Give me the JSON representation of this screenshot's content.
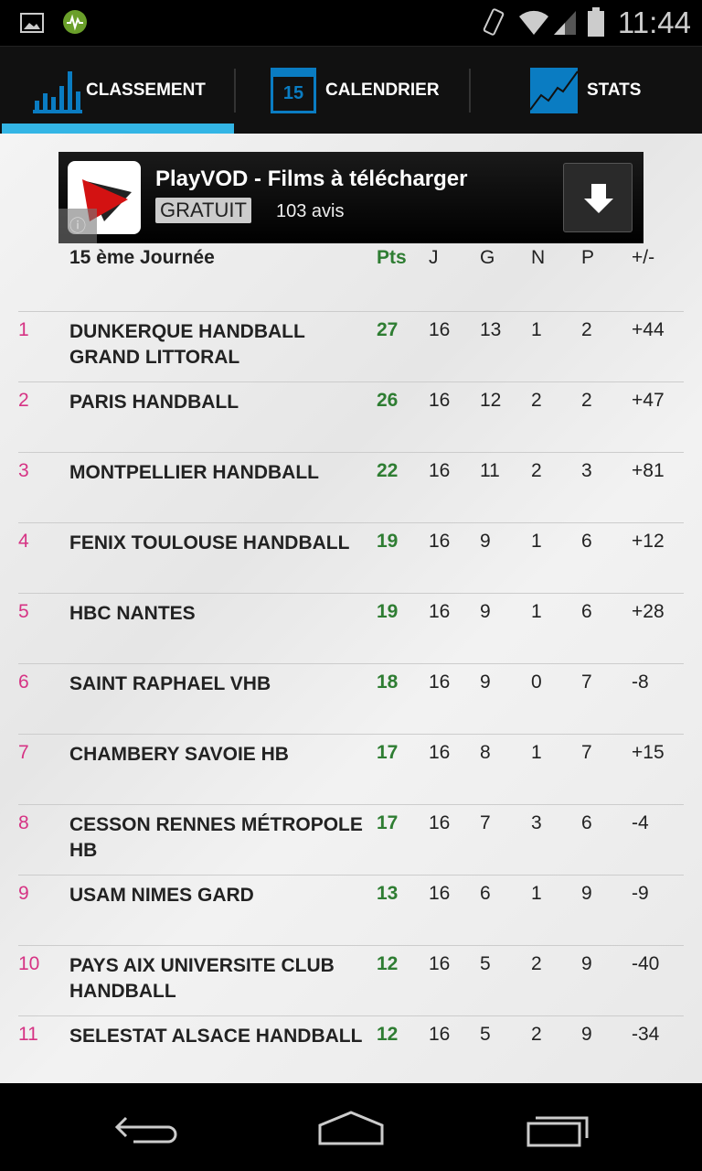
{
  "status": {
    "time": "11:44"
  },
  "tabs": [
    {
      "label": "CLASSEMENT",
      "active": true
    },
    {
      "label": "CALENDRIER",
      "icon_text": "15"
    },
    {
      "label": "STATS"
    }
  ],
  "ad": {
    "title": "PlayVOD - Films à télécharger",
    "price": "GRATUIT",
    "reviews": "103 avis"
  },
  "table": {
    "title": "15 ème Journée",
    "columns": [
      "Pts",
      "J",
      "G",
      "N",
      "P",
      "+/-"
    ],
    "rows": [
      {
        "rank": "1",
        "team": "DUNKERQUE HANDBALL GRAND LITTORAL",
        "pts": "27",
        "j": "16",
        "g": "13",
        "n": "1",
        "p": "2",
        "diff": "+44"
      },
      {
        "rank": "2",
        "team": "PARIS HANDBALL",
        "pts": "26",
        "j": "16",
        "g": "12",
        "n": "2",
        "p": "2",
        "diff": "+47"
      },
      {
        "rank": "3",
        "team": "MONTPELLIER HANDBALL",
        "pts": "22",
        "j": "16",
        "g": "11",
        "n": "2",
        "p": "3",
        "diff": "+81"
      },
      {
        "rank": "4",
        "team": "FENIX TOULOUSE HANDBALL",
        "pts": "19",
        "j": "16",
        "g": "9",
        "n": "1",
        "p": "6",
        "diff": "+12"
      },
      {
        "rank": "5",
        "team": "HBC NANTES",
        "pts": "19",
        "j": "16",
        "g": "9",
        "n": "1",
        "p": "6",
        "diff": "+28"
      },
      {
        "rank": "6",
        "team": "SAINT RAPHAEL VHB",
        "pts": "18",
        "j": "16",
        "g": "9",
        "n": "0",
        "p": "7",
        "diff": "-8"
      },
      {
        "rank": "7",
        "team": "CHAMBERY SAVOIE HB",
        "pts": "17",
        "j": "16",
        "g": "8",
        "n": "1",
        "p": "7",
        "diff": "+15"
      },
      {
        "rank": "8",
        "team": "CESSON RENNES MÉTROPOLE HB",
        "pts": "17",
        "j": "16",
        "g": "7",
        "n": "3",
        "p": "6",
        "diff": "-4"
      },
      {
        "rank": "9",
        "team": "USAM NIMES GARD",
        "pts": "13",
        "j": "16",
        "g": "6",
        "n": "1",
        "p": "9",
        "diff": "-9"
      },
      {
        "rank": "10",
        "team": "PAYS AIX UNIVERSITE CLUB HANDBALL",
        "pts": "12",
        "j": "16",
        "g": "5",
        "n": "2",
        "p": "9",
        "diff": "-40"
      },
      {
        "rank": "11",
        "team": "SELESTAT ALSACE HANDBALL",
        "pts": "12",
        "j": "16",
        "g": "5",
        "n": "2",
        "p": "9",
        "diff": "-34"
      }
    ]
  },
  "colors": {
    "accent": "#33b5e5",
    "points": "#2e7d32",
    "rank": "#d63384"
  }
}
